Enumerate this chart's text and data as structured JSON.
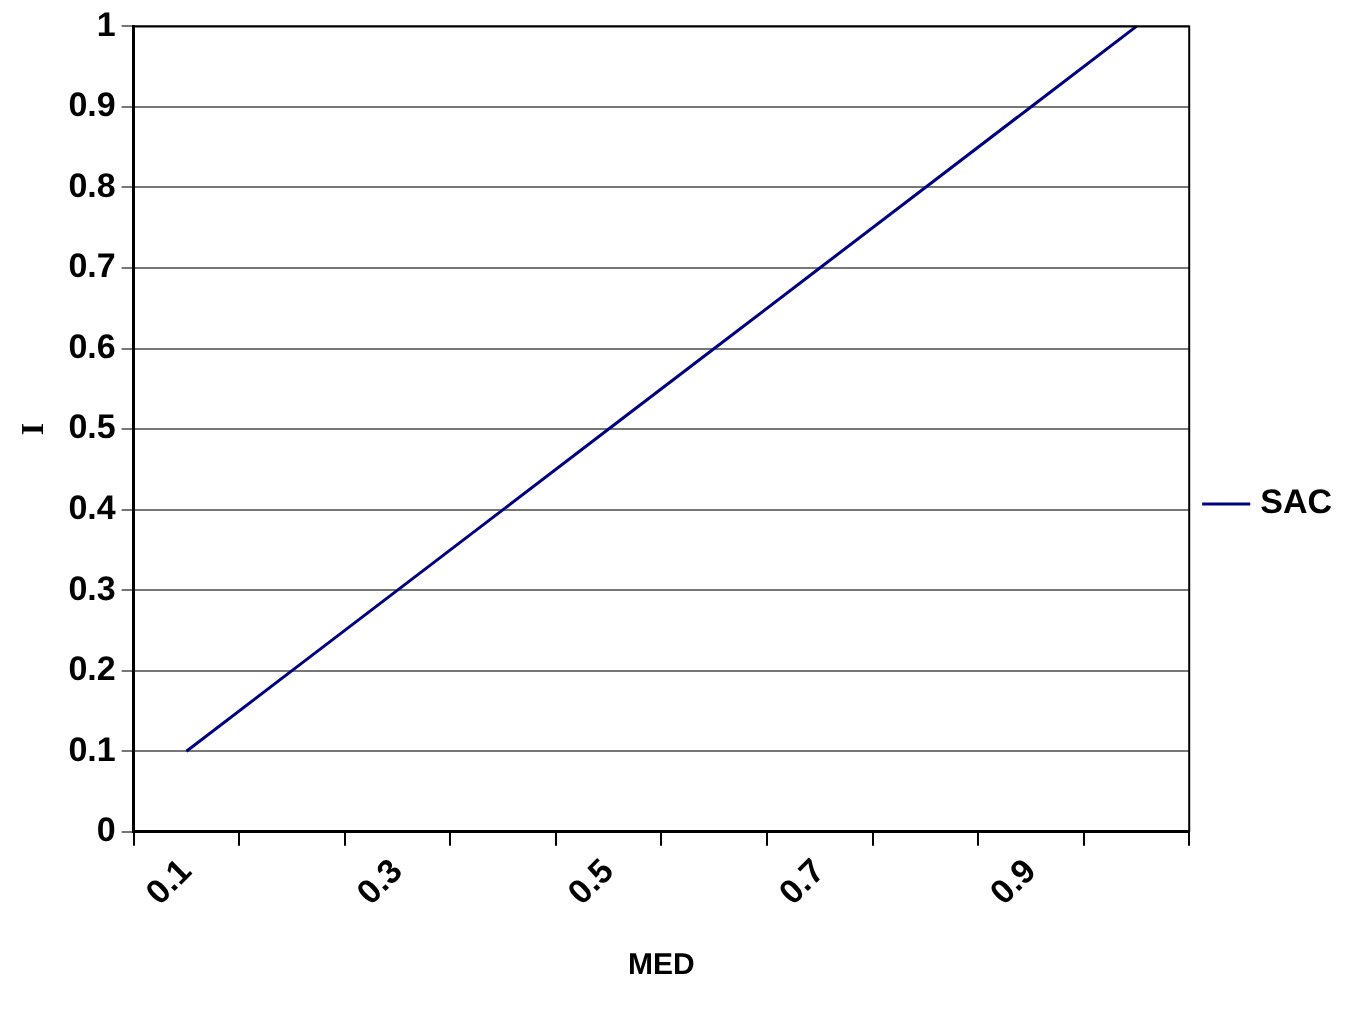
{
  "chart_data": {
    "type": "line",
    "xlabel": "MED",
    "ylabel": "I",
    "categories": [
      "0.1",
      null,
      "0.3",
      null,
      "0.5",
      null,
      "0.7",
      null,
      "0.9",
      null
    ],
    "series": [
      {
        "name": "SAC",
        "color": "#000080",
        "values": [
          0.1,
          0.2,
          0.3,
          0.4,
          0.5,
          0.6,
          0.7,
          0.8,
          0.9,
          1.0
        ]
      }
    ],
    "ylim": [
      0,
      1
    ],
    "yticks": [
      0,
      0.1,
      0.2,
      0.3,
      0.4,
      0.5,
      0.6,
      0.7,
      0.8,
      0.9,
      1
    ],
    "grid": "y",
    "legend": "right"
  }
}
